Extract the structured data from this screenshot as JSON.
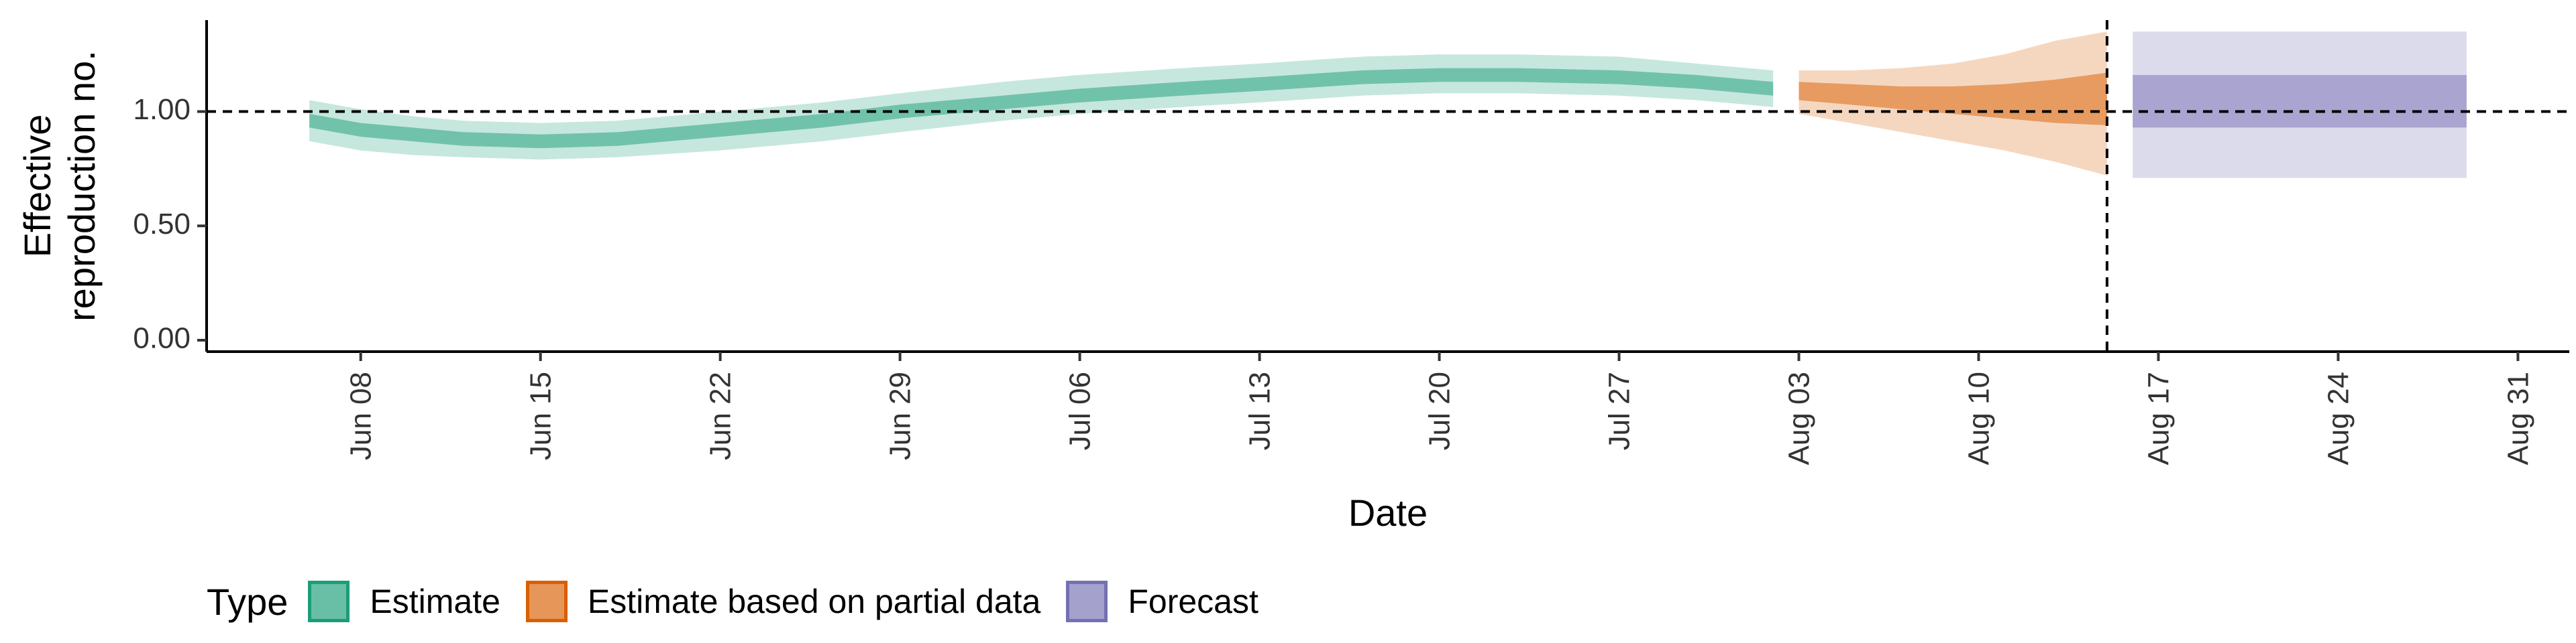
{
  "chart_data": {
    "type": "area",
    "xlabel": "Date",
    "ylabel": "Effective\nreproduction no.",
    "ylim": [
      -0.05,
      1.4
    ],
    "yticks": [
      0.0,
      0.5,
      1.0
    ],
    "ytick_labels": [
      "0.00",
      "0.50",
      "1.00"
    ],
    "xlim": [
      "2020-06-02",
      "2020-09-02"
    ],
    "xticks": [
      "2020-06-08",
      "2020-06-15",
      "2020-06-22",
      "2020-06-29",
      "2020-07-06",
      "2020-07-13",
      "2020-07-20",
      "2020-07-27",
      "2020-08-03",
      "2020-08-10",
      "2020-08-17",
      "2020-08-24",
      "2020-08-31"
    ],
    "xtick_labels": [
      "Jun 08",
      "Jun 15",
      "Jun 22",
      "Jun 29",
      "Jul 06",
      "Jul 13",
      "Jul 20",
      "Jul 27",
      "Aug 03",
      "Aug 10",
      "Aug 17",
      "Aug 24",
      "Aug 31"
    ],
    "hline": 1.0,
    "vline": "2020-08-15",
    "grid": false,
    "legend_position": "bottom",
    "colors": {
      "estimate": "#1b9e77",
      "partial": "#d95f02",
      "forecast": "#7570b3"
    },
    "series": [
      {
        "name": "Estimate",
        "color": "#1b9e77",
        "x": [
          "2020-06-06",
          "2020-06-08",
          "2020-06-10",
          "2020-06-12",
          "2020-06-15",
          "2020-06-18",
          "2020-06-22",
          "2020-06-26",
          "2020-06-29",
          "2020-07-03",
          "2020-07-06",
          "2020-07-10",
          "2020-07-13",
          "2020-07-17",
          "2020-07-20",
          "2020-07-23",
          "2020-07-27",
          "2020-07-30",
          "2020-08-02"
        ],
        "median": [
          0.96,
          0.92,
          0.9,
          0.88,
          0.87,
          0.88,
          0.92,
          0.96,
          1.0,
          1.04,
          1.07,
          1.1,
          1.12,
          1.15,
          1.16,
          1.16,
          1.15,
          1.13,
          1.1
        ],
        "lower_50": [
          0.93,
          0.89,
          0.87,
          0.85,
          0.84,
          0.85,
          0.89,
          0.93,
          0.97,
          1.01,
          1.04,
          1.07,
          1.09,
          1.12,
          1.13,
          1.13,
          1.12,
          1.1,
          1.07
        ],
        "upper_50": [
          0.99,
          0.95,
          0.93,
          0.91,
          0.9,
          0.91,
          0.95,
          0.99,
          1.03,
          1.07,
          1.1,
          1.13,
          1.15,
          1.18,
          1.19,
          1.19,
          1.18,
          1.16,
          1.13
        ],
        "lower_90": [
          0.87,
          0.83,
          0.81,
          0.8,
          0.79,
          0.8,
          0.83,
          0.87,
          0.91,
          0.96,
          0.99,
          1.02,
          1.04,
          1.07,
          1.08,
          1.08,
          1.07,
          1.05,
          1.02
        ],
        "upper_90": [
          1.05,
          1.01,
          0.98,
          0.96,
          0.95,
          0.96,
          1.0,
          1.04,
          1.08,
          1.13,
          1.16,
          1.19,
          1.21,
          1.24,
          1.25,
          1.25,
          1.24,
          1.21,
          1.18
        ]
      },
      {
        "name": "Estimate based on partial data",
        "color": "#d95f02",
        "x": [
          "2020-08-03",
          "2020-08-05",
          "2020-08-07",
          "2020-08-09",
          "2020-08-11",
          "2020-08-13",
          "2020-08-15"
        ],
        "median": [
          1.09,
          1.08,
          1.07,
          1.06,
          1.05,
          1.05,
          1.05
        ],
        "lower_50": [
          1.05,
          1.03,
          1.01,
          0.99,
          0.97,
          0.95,
          0.94
        ],
        "upper_50": [
          1.13,
          1.12,
          1.11,
          1.11,
          1.12,
          1.14,
          1.17
        ],
        "lower_90": [
          0.99,
          0.95,
          0.91,
          0.87,
          0.83,
          0.78,
          0.72
        ],
        "upper_90": [
          1.18,
          1.18,
          1.19,
          1.21,
          1.25,
          1.31,
          1.35
        ]
      },
      {
        "name": "Forecast",
        "color": "#7570b3",
        "x": [
          "2020-08-16",
          "2020-08-29"
        ],
        "median": [
          1.05,
          1.05
        ],
        "lower_50": [
          0.93,
          0.93
        ],
        "upper_50": [
          1.16,
          1.16
        ],
        "lower_90": [
          0.71,
          0.71
        ],
        "upper_90": [
          1.35,
          1.35
        ]
      }
    ]
  },
  "legend": {
    "title": "Type",
    "items": [
      {
        "label": "Estimate",
        "fill": "#1b9e77",
        "border": "#1b9e77"
      },
      {
        "label": "Estimate based on partial data",
        "fill": "#d95f02",
        "border": "#d95f02"
      },
      {
        "label": "Forecast",
        "fill": "#7570b3",
        "border": "#7570b3"
      }
    ]
  }
}
